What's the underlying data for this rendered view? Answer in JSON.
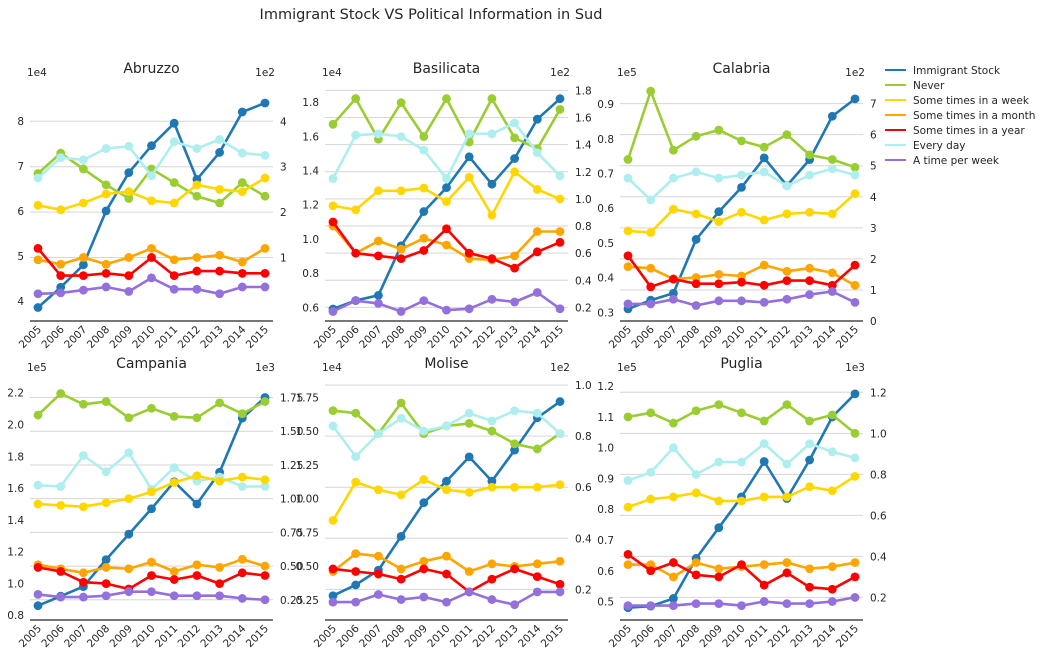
{
  "suptitle": "Immigrant Stock VS Political Information in Sud",
  "colors": {
    "Immigrant Stock": "#1f77b4",
    "Never": "#9acd32",
    "Some times in a week": "#ffd700",
    "Some times in a month": "#ffa500",
    "Some times in a year": "#ff0000",
    "Every day": "#afeeee",
    "A time per week": "#9370db"
  },
  "chart_data": {
    "type": "line",
    "years": [
      "2005",
      "2006",
      "2007",
      "2008",
      "2009",
      "2010",
      "2011",
      "2012",
      "2013",
      "2014",
      "2015"
    ],
    "legend": [
      "Immigrant Stock",
      "Never",
      "Some times in a week",
      "Some times in a month",
      "Some times in a year",
      "Every day",
      "A time per week"
    ],
    "panels": [
      {
        "title": "Abruzzo",
        "left_exp": "1e4",
        "right_exp": "1e2",
        "left_ticks": [
          "4",
          "5",
          "6",
          "7",
          "8"
        ],
        "left_tick_vals": [
          4,
          5,
          6,
          7,
          8
        ],
        "ylim_left": [
          3.55,
          8.8
        ],
        "right_ticks": [
          "1",
          "2",
          "3",
          "4"
        ],
        "right_tick_vals": [
          1,
          2,
          3,
          4
        ],
        "ylim_right": [
          -0.4,
          4.8
        ],
        "immigrant": [
          3.85,
          4.3,
          4.8,
          6.0,
          6.85,
          7.45,
          7.95,
          6.7,
          7.3,
          8.2,
          8.4
        ],
        "series": {
          "Never": [
            2.85,
            3.3,
            2.95,
            2.6,
            2.3,
            2.95,
            2.65,
            2.35,
            2.2,
            2.65,
            2.35
          ],
          "Some times in a week": [
            2.15,
            2.05,
            2.2,
            2.4,
            2.45,
            2.25,
            2.2,
            2.6,
            2.5,
            2.45,
            2.75
          ],
          "Some times in a month": [
            0.95,
            0.85,
            1.0,
            0.85,
            1.0,
            1.2,
            0.95,
            1.0,
            1.05,
            0.9,
            1.2
          ],
          "Some times in a year": [
            1.2,
            0.6,
            0.6,
            0.65,
            0.6,
            1.0,
            0.6,
            0.7,
            0.7,
            0.65,
            0.65
          ],
          "Every day": [
            2.75,
            3.2,
            3.15,
            3.4,
            3.45,
            2.8,
            3.55,
            3.4,
            3.6,
            3.3,
            3.25
          ],
          "A time per week": [
            0.2,
            0.22,
            0.28,
            0.35,
            0.25,
            0.55,
            0.3,
            0.3,
            0.2,
            0.35,
            0.35
          ]
        }
      },
      {
        "title": "Basilicata",
        "left_exp": "1e4",
        "right_exp": "1e2",
        "left_ticks": [
          "0.6",
          "0.8",
          "1.0",
          "1.2",
          "1.4",
          "1.6",
          "1.8"
        ],
        "left_tick_vals": [
          0.6,
          0.8,
          1.0,
          1.2,
          1.4,
          1.6,
          1.8
        ],
        "ylim_left": [
          0.52,
          1.9
        ],
        "right_ticks": [
          "0.2",
          "0.4",
          "0.6",
          "0.8",
          "1.0",
          "1.2",
          "1.4",
          "1.6",
          "1.8"
        ],
        "right_tick_vals": [
          0.2,
          0.4,
          0.6,
          0.8,
          1.0,
          1.2,
          1.4,
          1.6,
          1.8
        ],
        "ylim_right": [
          0.1,
          1.84
        ],
        "immigrant": [
          0.59,
          0.64,
          0.67,
          0.96,
          1.16,
          1.3,
          1.48,
          1.32,
          1.47,
          1.7,
          1.82
        ],
        "series": {
          "Never": [
            1.55,
            1.74,
            1.44,
            1.71,
            1.46,
            1.74,
            1.42,
            1.74,
            1.45,
            1.37,
            1.66
          ],
          "Some times in a week": [
            0.95,
            0.92,
            1.06,
            1.06,
            1.08,
            0.98,
            1.16,
            0.88,
            1.2,
            1.07,
            1.0
          ],
          "Some times in a month": [
            0.8,
            0.6,
            0.69,
            0.63,
            0.71,
            0.66,
            0.56,
            0.55,
            0.58,
            0.76,
            0.76
          ],
          "Some times in a year": [
            0.83,
            0.6,
            0.58,
            0.56,
            0.62,
            0.78,
            0.6,
            0.56,
            0.49,
            0.61,
            0.68
          ],
          "Every day": [
            1.15,
            1.47,
            1.48,
            1.46,
            1.36,
            1.15,
            1.48,
            1.48,
            1.56,
            1.34,
            1.17
          ],
          "A time per week": [
            0.17,
            0.25,
            0.23,
            0.17,
            0.25,
            0.18,
            0.19,
            0.26,
            0.24,
            0.31,
            0.19
          ]
        }
      },
      {
        "title": "Calabria",
        "left_exp": "1e5",
        "right_exp": "1e2",
        "left_ticks": [
          "0.3",
          "0.4",
          "0.5",
          "0.6",
          "0.7",
          "0.8",
          "0.9"
        ],
        "left_tick_vals": [
          0.3,
          0.4,
          0.5,
          0.6,
          0.7,
          0.8,
          0.9
        ],
        "ylim_left": [
          0.275,
          0.955
        ],
        "right_ticks": [
          "0",
          "1",
          "2",
          "3",
          "4",
          "5",
          "6",
          "7"
        ],
        "right_tick_vals": [
          0,
          1,
          2,
          3,
          4,
          5,
          6,
          7
        ],
        "ylim_right": [
          0,
          7.6
        ],
        "immigrant": [
          0.31,
          0.335,
          0.355,
          0.51,
          0.59,
          0.66,
          0.745,
          0.665,
          0.74,
          0.865,
          0.915
        ],
        "series": {
          "Never": [
            5.2,
            7.4,
            5.5,
            5.95,
            6.15,
            5.8,
            5.6,
            6.0,
            5.35,
            5.2,
            4.95
          ],
          "Some times in a week": [
            2.9,
            2.85,
            3.6,
            3.45,
            3.2,
            3.5,
            3.25,
            3.45,
            3.5,
            3.45,
            4.1
          ],
          "Some times in a month": [
            1.75,
            1.7,
            1.35,
            1.4,
            1.5,
            1.45,
            1.8,
            1.6,
            1.7,
            1.55,
            1.15
          ],
          "Some times in a year": [
            2.1,
            1.1,
            1.35,
            1.2,
            1.2,
            1.25,
            1.15,
            1.3,
            1.3,
            1.15,
            1.8
          ],
          "Every day": [
            4.6,
            3.9,
            4.6,
            4.8,
            4.6,
            4.7,
            4.8,
            4.35,
            4.7,
            4.9,
            4.7
          ],
          "A time per week": [
            0.55,
            0.55,
            0.7,
            0.5,
            0.65,
            0.65,
            0.6,
            0.7,
            0.85,
            0.95,
            0.6
          ]
        }
      },
      {
        "title": "Campania",
        "left_exp": "1e5",
        "right_exp": "1e3",
        "left_ticks": [
          "0.8",
          "1.0",
          "1.2",
          "1.4",
          "1.6",
          "1.8",
          "2.0",
          "2.2"
        ],
        "left_tick_vals": [
          0.8,
          1.0,
          1.2,
          1.4,
          1.6,
          1.8,
          2.0,
          2.2
        ],
        "ylim_left": [
          0.77,
          2.28
        ],
        "right_ticks": [
          "0.25",
          "0.50",
          "0.75",
          "1.00",
          "1.25",
          "1.50",
          "1.75"
        ],
        "right_tick_vals": [
          0.25,
          0.5,
          0.75,
          1.0,
          1.25,
          1.5,
          1.75
        ],
        "ylim_right": [
          0.1,
          1.88
        ],
        "immigrant": [
          0.86,
          0.92,
          0.98,
          1.15,
          1.31,
          1.47,
          1.64,
          1.5,
          1.7,
          2.04,
          2.17
        ],
        "series": {
          "Never": [
            1.62,
            1.78,
            1.7,
            1.72,
            1.6,
            1.67,
            1.61,
            1.6,
            1.71,
            1.63,
            1.72
          ],
          "Some times in a week": [
            0.96,
            0.95,
            0.94,
            0.97,
            1.0,
            1.05,
            1.12,
            1.17,
            1.13,
            1.16,
            1.14
          ],
          "Some times in a month": [
            0.51,
            0.48,
            0.45,
            0.49,
            0.48,
            0.53,
            0.46,
            0.51,
            0.49,
            0.55,
            0.5
          ],
          "Some times in a year": [
            0.49,
            0.46,
            0.38,
            0.37,
            0.33,
            0.43,
            0.4,
            0.43,
            0.37,
            0.45,
            0.43
          ],
          "Every day": [
            1.1,
            1.09,
            1.32,
            1.2,
            1.34,
            1.07,
            1.23,
            1.13,
            1.16,
            1.09,
            1.09
          ],
          "A time per week": [
            0.29,
            0.27,
            0.27,
            0.28,
            0.31,
            0.31,
            0.28,
            0.28,
            0.28,
            0.26,
            0.25
          ]
        }
      },
      {
        "title": "Molise",
        "left_exp": "1e4",
        "right_exp": "1e2",
        "left_ticks": [
          "0.25",
          "0.50",
          "0.75",
          "1.00",
          "1.25",
          "1.50",
          "1.75"
        ],
        "left_tick_vals": [
          0.25,
          0.5,
          0.75,
          1.0,
          1.25,
          1.5,
          1.75
        ],
        "ylim_left": [
          0.1,
          1.88
        ],
        "right_ticks": [
          "0.2",
          "0.4",
          "0.6",
          "0.8",
          "1.0"
        ],
        "right_tick_vals": [
          0.2,
          0.4,
          0.6,
          0.8,
          1.0
        ],
        "ylim_right": [
          0.08,
          1.02
        ],
        "immigrant": [
          0.28,
          0.36,
          0.47,
          0.72,
          0.97,
          1.13,
          1.31,
          1.13,
          1.36,
          1.6,
          1.72
        ],
        "series": {
          "Never": [
            0.9,
            0.89,
            0.81,
            0.93,
            0.81,
            0.84,
            0.85,
            0.82,
            0.77,
            0.75,
            0.81
          ],
          "Some times in a week": [
            0.47,
            0.62,
            0.59,
            0.57,
            0.63,
            0.59,
            0.58,
            0.6,
            0.6,
            0.6,
            0.61
          ],
          "Some times in a month": [
            0.27,
            0.34,
            0.33,
            0.28,
            0.31,
            0.33,
            0.27,
            0.3,
            0.29,
            0.3,
            0.31
          ],
          "Some times in a year": [
            0.28,
            0.27,
            0.26,
            0.24,
            0.28,
            0.26,
            0.19,
            0.24,
            0.28,
            0.25,
            0.22
          ],
          "Every day": [
            0.84,
            0.72,
            0.81,
            0.87,
            0.82,
            0.84,
            0.89,
            0.86,
            0.9,
            0.89,
            0.81
          ],
          "A time per week": [
            0.15,
            0.15,
            0.18,
            0.16,
            0.17,
            0.15,
            0.19,
            0.16,
            0.14,
            0.19,
            0.19
          ]
        }
      },
      {
        "title": "Puglia",
        "left_exp": "1e5",
        "right_exp": "1e3",
        "left_ticks": [
          "0.5",
          "0.6",
          "0.7",
          "0.8",
          "0.9",
          "1.0",
          "1.1",
          "1.2"
        ],
        "left_tick_vals": [
          0.5,
          0.6,
          0.7,
          0.8,
          0.9,
          1.0,
          1.1,
          1.2
        ],
        "ylim_left": [
          0.44,
          1.22
        ],
        "right_ticks": [
          "0.2",
          "0.4",
          "0.6",
          "0.8",
          "1.0",
          "1.2"
        ],
        "right_tick_vals": [
          0.2,
          0.4,
          0.6,
          0.8,
          1.0,
          1.2
        ],
        "ylim_right": [
          0.09,
          1.26
        ],
        "immigrant": [
          0.48,
          0.485,
          0.51,
          0.64,
          0.74,
          0.84,
          0.955,
          0.835,
          0.96,
          1.1,
          1.175
        ],
        "series": {
          "Never": [
            1.08,
            1.1,
            1.05,
            1.11,
            1.14,
            1.1,
            1.06,
            1.14,
            1.06,
            1.09,
            1.0
          ],
          "Some times in a week": [
            0.64,
            0.68,
            0.69,
            0.71,
            0.67,
            0.67,
            0.69,
            0.69,
            0.74,
            0.72,
            0.79
          ],
          "Some times in a month": [
            0.36,
            0.36,
            0.3,
            0.37,
            0.34,
            0.35,
            0.36,
            0.37,
            0.34,
            0.35,
            0.37
          ],
          "Some times in a year": [
            0.41,
            0.33,
            0.37,
            0.31,
            0.3,
            0.36,
            0.26,
            0.32,
            0.25,
            0.24,
            0.3
          ],
          "Every day": [
            0.77,
            0.81,
            0.93,
            0.8,
            0.86,
            0.86,
            0.95,
            0.85,
            0.95,
            0.91,
            0.88
          ],
          "A time per week": [
            0.16,
            0.16,
            0.16,
            0.17,
            0.17,
            0.16,
            0.18,
            0.17,
            0.17,
            0.18,
            0.2
          ]
        }
      }
    ]
  }
}
